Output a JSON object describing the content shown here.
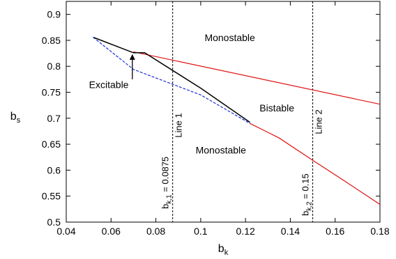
{
  "chart_data": {
    "type": "line",
    "title": "",
    "xlabel": "b",
    "xlabel_subscript": "k",
    "ylabel": "b",
    "ylabel_subscript": "s",
    "xlim": [
      0.04,
      0.18
    ],
    "ylim": [
      0.5,
      0.925
    ],
    "xticks": [
      0.04,
      0.06,
      0.08,
      0.1,
      0.12,
      0.14,
      0.16,
      0.18
    ],
    "xtick_labels": [
      "0.04",
      "0.06",
      "0.08",
      "0.1",
      "0.12",
      "0.14",
      "0.16",
      "0.18"
    ],
    "yticks": [
      0.5,
      0.55,
      0.6,
      0.65,
      0.7,
      0.75,
      0.8,
      0.85,
      0.9
    ],
    "ytick_labels": [
      "0.5",
      "0.55",
      "0.6",
      "0.65",
      "0.7",
      "0.75",
      "0.8",
      "0.85",
      "0.9"
    ],
    "grid": false,
    "series": [
      {
        "color": "#e01010",
        "dash": "solid",
        "x": [
          0.07,
          0.18
        ],
        "y": [
          0.828,
          0.727
        ]
      },
      {
        "color": "#e01010",
        "dash": "solid",
        "x": [
          0.122,
          0.135,
          0.15,
          0.165,
          0.18
        ],
        "y": [
          0.69,
          0.662,
          0.619,
          0.577,
          0.534
        ]
      },
      {
        "color": "#000000",
        "dash": "solid",
        "x": [
          0.052,
          0.07,
          0.075,
          0.1,
          0.122
        ],
        "y": [
          0.856,
          0.826,
          0.826,
          0.758,
          0.692
        ]
      },
      {
        "color": "#1a2ed8",
        "dash": "dashed",
        "x": [
          0.052,
          0.07,
          0.1,
          0.122
        ],
        "y": [
          0.856,
          0.794,
          0.745,
          0.69
        ]
      }
    ],
    "vertical_lines": [
      {
        "x": 0.0875,
        "label": "Line 1",
        "value_label": "b_{k,1} = 0.0875",
        "value_main": "b",
        "value_sub": "k,1",
        "value_rest": " = 0.0875"
      },
      {
        "x": 0.15,
        "label": "Line 2",
        "value_label": "b_{k,2} = 0.15",
        "value_main": "b",
        "value_sub": "k,2",
        "value_rest": " = 0.15"
      }
    ],
    "annotations": [
      {
        "text": "Monostable",
        "x": 0.113,
        "y": 0.855
      },
      {
        "text": "Bistable",
        "x": 0.134,
        "y": 0.72
      },
      {
        "text": "Monostable",
        "x": 0.109,
        "y": 0.639
      },
      {
        "text": "Excitable",
        "x": 0.059,
        "y": 0.765
      }
    ],
    "arrow": {
      "from": [
        0.0695,
        0.775
      ],
      "to": [
        0.0695,
        0.822
      ]
    }
  }
}
